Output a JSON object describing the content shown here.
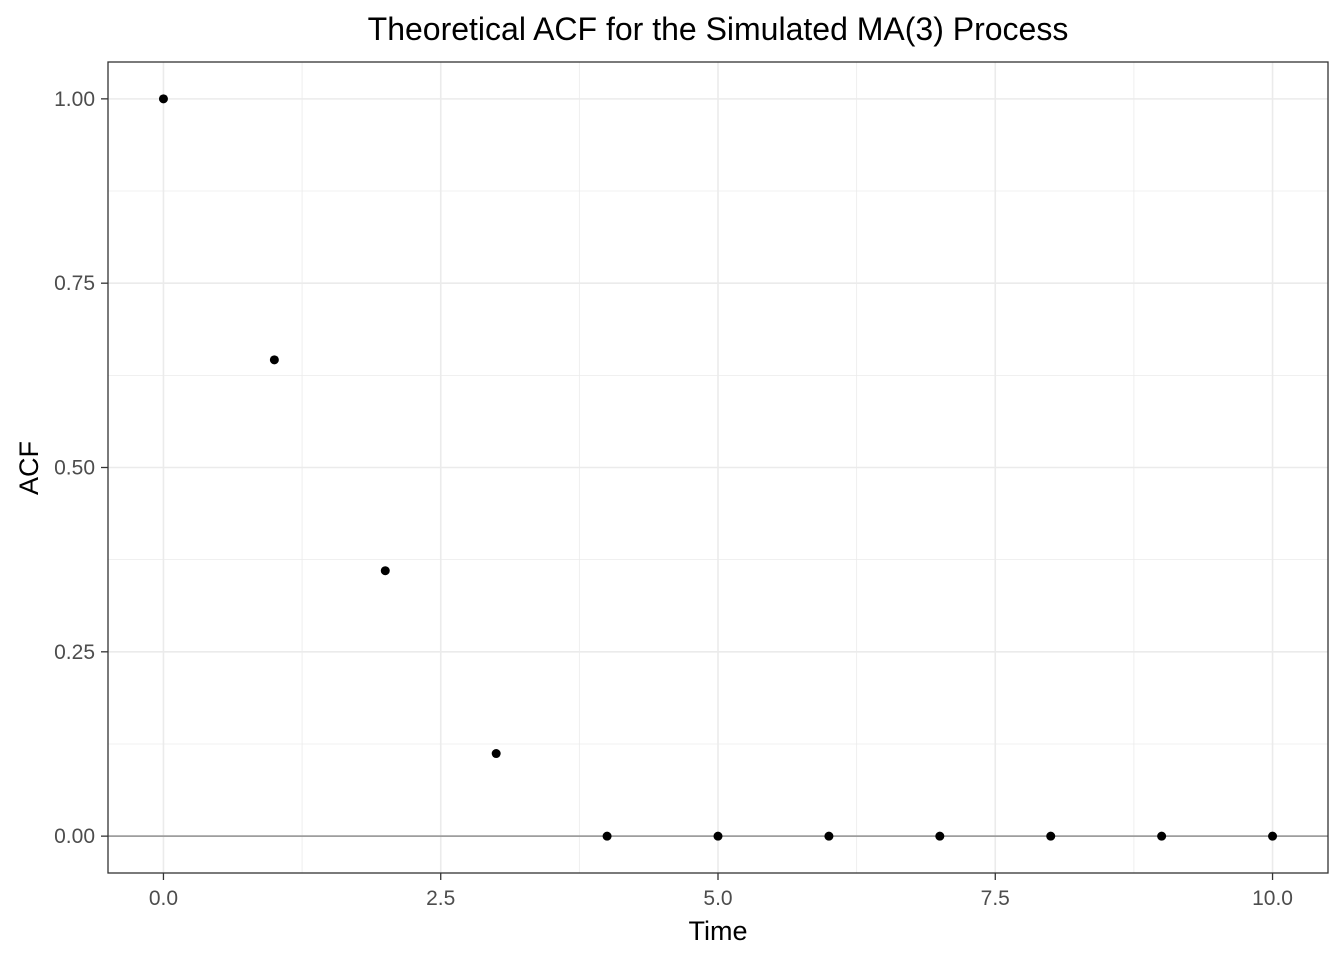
{
  "chart_data": {
    "type": "scatter",
    "title": "Theoretical ACF for the Simulated MA(3) Process",
    "xlabel": "Time",
    "ylabel": "ACF",
    "x": [
      0,
      1,
      2,
      3,
      4,
      5,
      6,
      7,
      8,
      9,
      10
    ],
    "y": [
      1.0,
      0.646,
      0.36,
      0.112,
      0,
      0,
      0,
      0,
      0,
      0,
      0
    ],
    "xlim": [
      -0.5,
      10.5
    ],
    "ylim": [
      -0.05,
      1.05
    ],
    "x_ticks": [
      0,
      2.5,
      5,
      7.5,
      10
    ],
    "x_tick_labels": [
      "0.0",
      "2.5",
      "5.0",
      "7.5",
      "10.0"
    ],
    "y_ticks": [
      0,
      0.25,
      0.5,
      0.75,
      1.0
    ],
    "y_tick_labels": [
      "0.00",
      "0.25",
      "0.50",
      "0.75",
      "1.00"
    ],
    "reference_line_y": 0,
    "grid": true,
    "point_color": "#000000",
    "reference_line_color": "#9e9e9e",
    "grid_color": "#ebebeb"
  }
}
